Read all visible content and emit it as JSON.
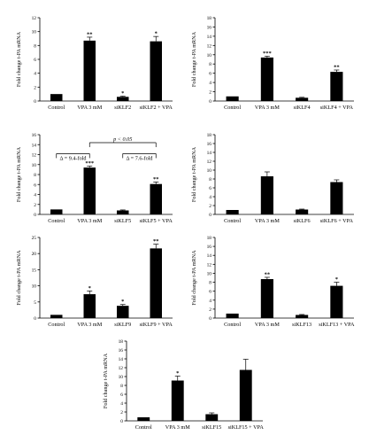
{
  "chart_data": [
    {
      "type": "bar",
      "ylabel": "Fold change t-PA mRNA",
      "ylim": [
        0,
        12
      ],
      "yticks": [
        0,
        2,
        4,
        6,
        8,
        10,
        12
      ],
      "categories": [
        "Control",
        "VPA 3 mM",
        "siKLF2",
        "siKLF2 + VPA"
      ],
      "values": [
        1.0,
        8.7,
        0.6,
        8.6
      ],
      "errors": [
        0.05,
        0.5,
        0.1,
        0.7
      ],
      "significance": [
        "",
        "**",
        "*",
        "*"
      ]
    },
    {
      "type": "bar",
      "ylabel": "Fold change t-PA mRNA",
      "ylim": [
        0,
        18
      ],
      "yticks": [
        0,
        2,
        4,
        6,
        8,
        10,
        12,
        14,
        16,
        18
      ],
      "categories": [
        "Control",
        "VPA 3 mM",
        "siKLF4",
        "siKLF4 + VPA"
      ],
      "values": [
        1.0,
        9.4,
        0.7,
        6.3
      ],
      "errors": [
        0.05,
        0.3,
        0.1,
        0.4
      ],
      "significance": [
        "",
        "***",
        "",
        "**"
      ]
    },
    {
      "type": "bar",
      "ylabel": "Fold change t-PA mRNA",
      "ylim": [
        0,
        16
      ],
      "yticks": [
        0,
        2,
        4,
        6,
        8,
        10,
        12,
        14,
        16
      ],
      "categories": [
        "Control",
        "VPA 3 mM",
        "siKLF5",
        "siKLF5 + VPA"
      ],
      "values": [
        1.0,
        9.4,
        0.8,
        6.1
      ],
      "errors": [
        0.05,
        0.3,
        0.1,
        0.4
      ],
      "significance": [
        "",
        "***",
        "",
        "**"
      ],
      "annotations": {
        "p_text": "p < 0.05",
        "delta_left": "Δ = 9.4-fold",
        "delta_right": "Δ = 7.6-fold"
      }
    },
    {
      "type": "bar",
      "ylabel": "Fold change t-PA mRNA",
      "ylim": [
        0,
        18
      ],
      "yticks": [
        0,
        2,
        4,
        6,
        8,
        10,
        12,
        14,
        16,
        18
      ],
      "categories": [
        "Control",
        "VPA 3 mM",
        "siKLF6",
        "siKLF6 + VPA"
      ],
      "values": [
        1.0,
        8.6,
        1.1,
        7.3
      ],
      "errors": [
        0.05,
        1.0,
        0.1,
        0.5
      ],
      "significance": [
        "",
        "",
        "",
        ""
      ]
    },
    {
      "type": "bar",
      "ylabel": "Fold change t-PA mRNA",
      "ylim": [
        0,
        25
      ],
      "yticks": [
        0,
        5,
        10,
        15,
        20,
        25
      ],
      "categories": [
        "Control",
        "VPA 3 mM",
        "siKLF9",
        "siKLF9 + VPA"
      ],
      "values": [
        1.0,
        7.4,
        3.8,
        21.6
      ],
      "errors": [
        0.05,
        1.0,
        0.4,
        1.3
      ],
      "significance": [
        "",
        "*",
        "*",
        "**"
      ]
    },
    {
      "type": "bar",
      "ylabel": "Fold change t-PA mRNA",
      "ylim": [
        0,
        18
      ],
      "yticks": [
        0,
        2,
        4,
        6,
        8,
        10,
        12,
        14,
        16,
        18
      ],
      "categories": [
        "Control",
        "VPA 3 mM",
        "siKLF13",
        "siKLF13 + VPA"
      ],
      "values": [
        1.0,
        8.7,
        0.7,
        7.2
      ],
      "errors": [
        0.05,
        0.4,
        0.1,
        0.8
      ],
      "significance": [
        "",
        "**",
        "",
        "*"
      ]
    },
    {
      "type": "bar",
      "ylabel": "Fold change t-PA mRNA",
      "ylim": [
        0,
        18
      ],
      "yticks": [
        0,
        2,
        4,
        6,
        8,
        10,
        12,
        14,
        16,
        18
      ],
      "categories": [
        "Control",
        "VPA 3 mM",
        "siKLF15",
        "siKLF15 + VPA"
      ],
      "values": [
        0.8,
        9.1,
        1.5,
        11.5
      ],
      "errors": [
        0.05,
        1.0,
        0.3,
        2.4
      ],
      "significance": [
        "",
        "*",
        "",
        ""
      ]
    }
  ]
}
